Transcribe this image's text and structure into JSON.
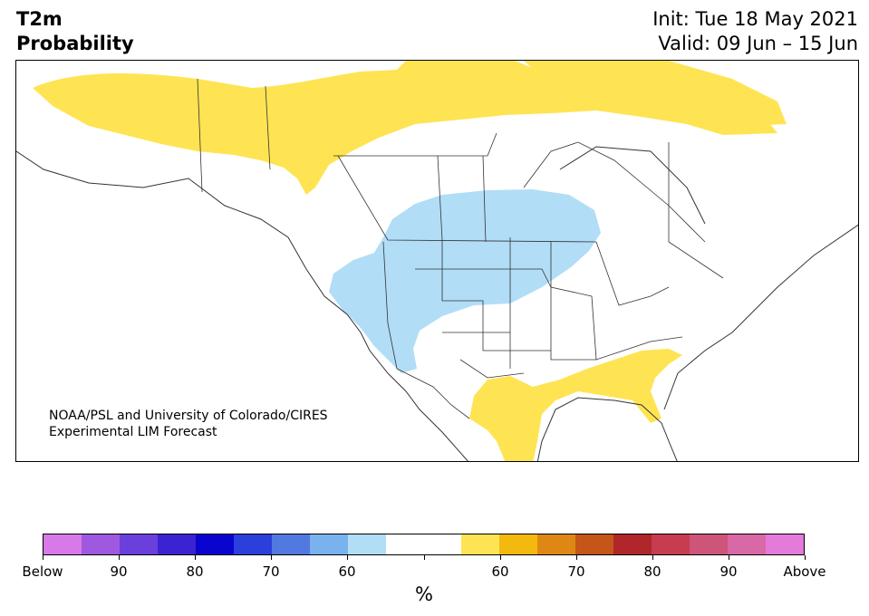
{
  "title": {
    "line1": "T2m",
    "line2": "Probability"
  },
  "dates": {
    "init": "Init: Tue 18 May 2021",
    "valid": "Valid: 09 Jun – 15 Jun"
  },
  "credit": {
    "line1": "NOAA/PSL and University of Colorado/CIRES",
    "line2": "Experimental LIM Forecast"
  },
  "colorbar": {
    "colors": [
      "#d77ae8",
      "#9f59e0",
      "#6b3fdb",
      "#3b23d2",
      "#0a04cf",
      "#2b3fdc",
      "#5279e0",
      "#7ab2ee",
      "#b1ddf7",
      "#ffffff",
      "#ffffff",
      "#fee453",
      "#f3b90f",
      "#df8715",
      "#c55519",
      "#b0262a",
      "#c63c50",
      "#cd5579",
      "#d868a6",
      "#e47ad9"
    ],
    "labels": [
      "Below",
      "90",
      "80",
      "70",
      "60",
      "",
      "60",
      "70",
      "80",
      "90",
      "Above"
    ],
    "unit": "%"
  },
  "map_colors": {
    "land": "#ffffff",
    "above": "#fee453",
    "below": "#b1ddf7",
    "border": "#333333"
  }
}
